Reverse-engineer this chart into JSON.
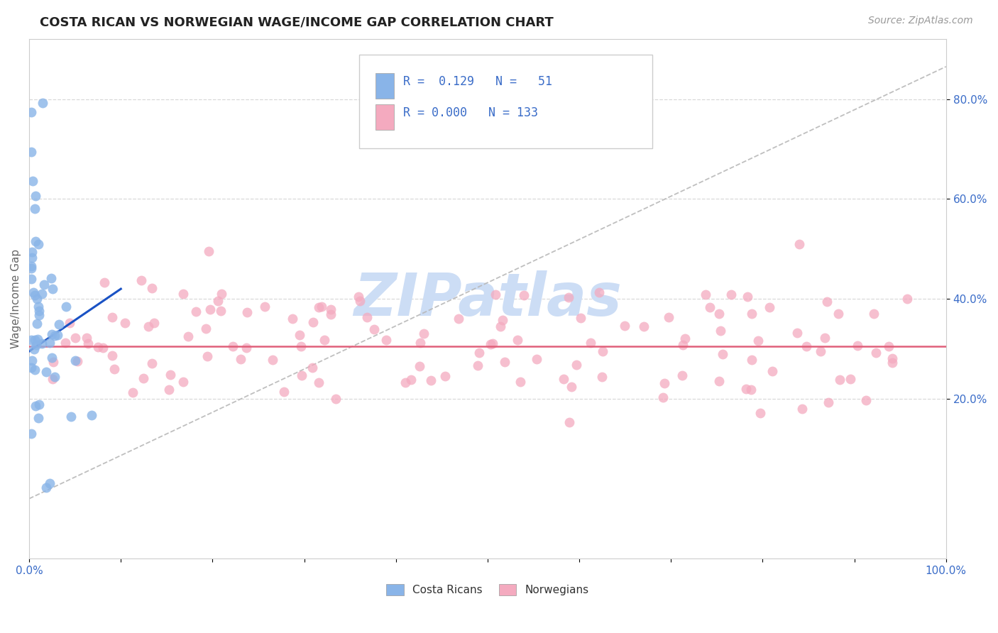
{
  "title": "COSTA RICAN VS NORWEGIAN WAGE/INCOME GAP CORRELATION CHART",
  "source": "Source: ZipAtlas.com",
  "ylabel": "Wage/Income Gap",
  "ytick_vals": [
    0.2,
    0.4,
    0.6,
    0.8
  ],
  "ytick_labels": [
    "20.0%",
    "40.0%",
    "60.0%",
    "80.0%"
  ],
  "xlim": [
    0.0,
    1.0
  ],
  "ylim": [
    -0.12,
    0.92
  ],
  "legend_cr_label": "R =  0.129   N =   51",
  "legend_no_label": "R = 0.000   N = 133",
  "legend_bottom_cr": "Costa Ricans",
  "legend_bottom_no": "Norwegians",
  "costa_rican_dot_color": "#89b4e8",
  "norwegian_dot_color": "#f4aabf",
  "costa_rican_trend_color": "#1a52c4",
  "norwegian_trend_color": "#e0607a",
  "diagonal_color": "#b8b8b8",
  "grid_color": "#d8d8d8",
  "background_color": "#ffffff",
  "watermark_color": "#ccddf5",
  "tick_color": "#3a6cc8",
  "title_color": "#222222",
  "source_color": "#999999",
  "ylabel_color": "#666666",
  "cr_trend_x": [
    0.0,
    0.1
  ],
  "cr_trend_y": [
    0.295,
    0.42
  ],
  "no_trend_y": 0.305,
  "cr_seed": 77,
  "no_seed": 42
}
